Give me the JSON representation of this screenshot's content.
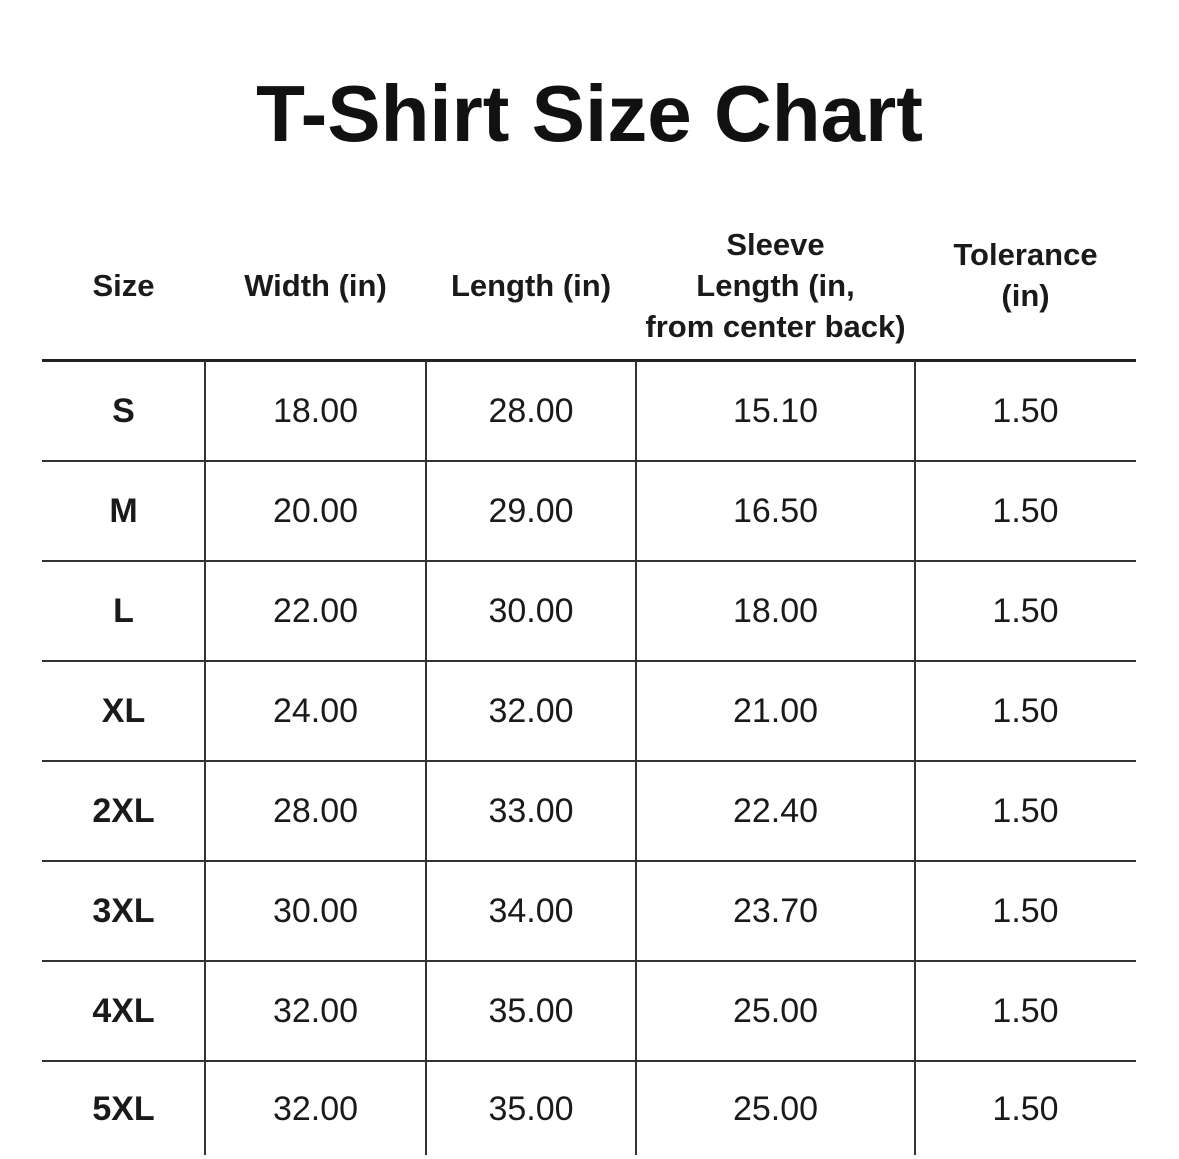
{
  "title": "T-Shirt Size Chart",
  "columns": [
    "Size",
    "Width (in)",
    "Length (in)",
    "Sleeve Length (in, from center back)",
    "Tolerance (in)"
  ],
  "header_lines": [
    [
      "Size"
    ],
    [
      "Width (in)"
    ],
    [
      "Length (in)"
    ],
    [
      "Sleeve",
      "Length (in,",
      "from center back)"
    ],
    [
      "Tolerance",
      "(in)"
    ]
  ],
  "rows": [
    [
      "S",
      "18.00",
      "28.00",
      "15.10",
      "1.50"
    ],
    [
      "M",
      "20.00",
      "29.00",
      "16.50",
      "1.50"
    ],
    [
      "L",
      "22.00",
      "30.00",
      "18.00",
      "1.50"
    ],
    [
      "XL",
      "24.00",
      "32.00",
      "21.00",
      "1.50"
    ],
    [
      "2XL",
      "28.00",
      "33.00",
      "22.40",
      "1.50"
    ],
    [
      "3XL",
      "30.00",
      "34.00",
      "23.70",
      "1.50"
    ],
    [
      "4XL",
      "32.00",
      "35.00",
      "25.00",
      "1.50"
    ],
    [
      "5XL",
      "32.00",
      "35.00",
      "25.00",
      "1.50"
    ]
  ]
}
